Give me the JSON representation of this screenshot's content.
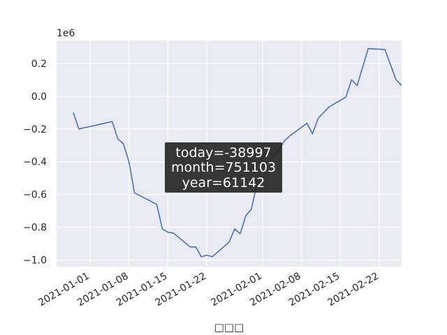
{
  "chart_data": {
    "type": "line",
    "title": "",
    "xlabel": "□□□",
    "ylabel": "",
    "y_offset_label": "1e6",
    "x_range": [
      "2020-12-26",
      "2021-02-26"
    ],
    "y_range": [
      -1.04,
      0.34
    ],
    "grid": true,
    "x_ticks": [
      "2021-01-01",
      "2021-01-08",
      "2021-01-15",
      "2021-01-22",
      "2021-02-01",
      "2021-02-08",
      "2021-02-15",
      "2021-02-22"
    ],
    "y_ticks": [
      0.2,
      0.0,
      -0.2,
      -0.4,
      -0.6,
      -0.8,
      -1.0
    ],
    "y_tick_labels": [
      "0.2",
      "0.0",
      "−0.2",
      "−0.4",
      "−0.6",
      "−0.8",
      "−1.0"
    ],
    "annotation_lines": [
      "today=-38997",
      "month=751103",
      "year=61142"
    ],
    "series": [
      {
        "color": "#4c72b0",
        "x": [
          "2020-12-29",
          "2020-12-30",
          "2021-01-05",
          "2021-01-06",
          "2021-01-07",
          "2021-01-08",
          "2021-01-09",
          "2021-01-13",
          "2021-01-14",
          "2021-01-15",
          "2021-01-16",
          "2021-01-19",
          "2021-01-20",
          "2021-01-21",
          "2021-01-22",
          "2021-01-23",
          "2021-01-26",
          "2021-01-27",
          "2021-01-28",
          "2021-01-29",
          "2021-01-30",
          "2021-02-01",
          "2021-02-02",
          "2021-02-03",
          "2021-02-04",
          "2021-02-05",
          "2021-02-06",
          "2021-02-09",
          "2021-02-10",
          "2021-02-11",
          "2021-02-13",
          "2021-02-16",
          "2021-02-17",
          "2021-02-18",
          "2021-02-20",
          "2021-02-23",
          "2021-02-25",
          "2021-02-26"
        ],
        "y": [
          -0.1,
          -0.2,
          -0.155,
          -0.26,
          -0.29,
          -0.4,
          -0.59,
          -0.66,
          -0.81,
          -0.83,
          -0.835,
          -0.92,
          -0.92,
          -0.98,
          -0.97,
          -0.98,
          -0.89,
          -0.81,
          -0.84,
          -0.73,
          -0.69,
          -0.38,
          -0.33,
          -0.37,
          -0.325,
          -0.27,
          -0.24,
          -0.165,
          -0.23,
          -0.135,
          -0.065,
          -0.005,
          0.1,
          0.065,
          0.29,
          0.285,
          0.1,
          0.065
        ]
      }
    ]
  }
}
